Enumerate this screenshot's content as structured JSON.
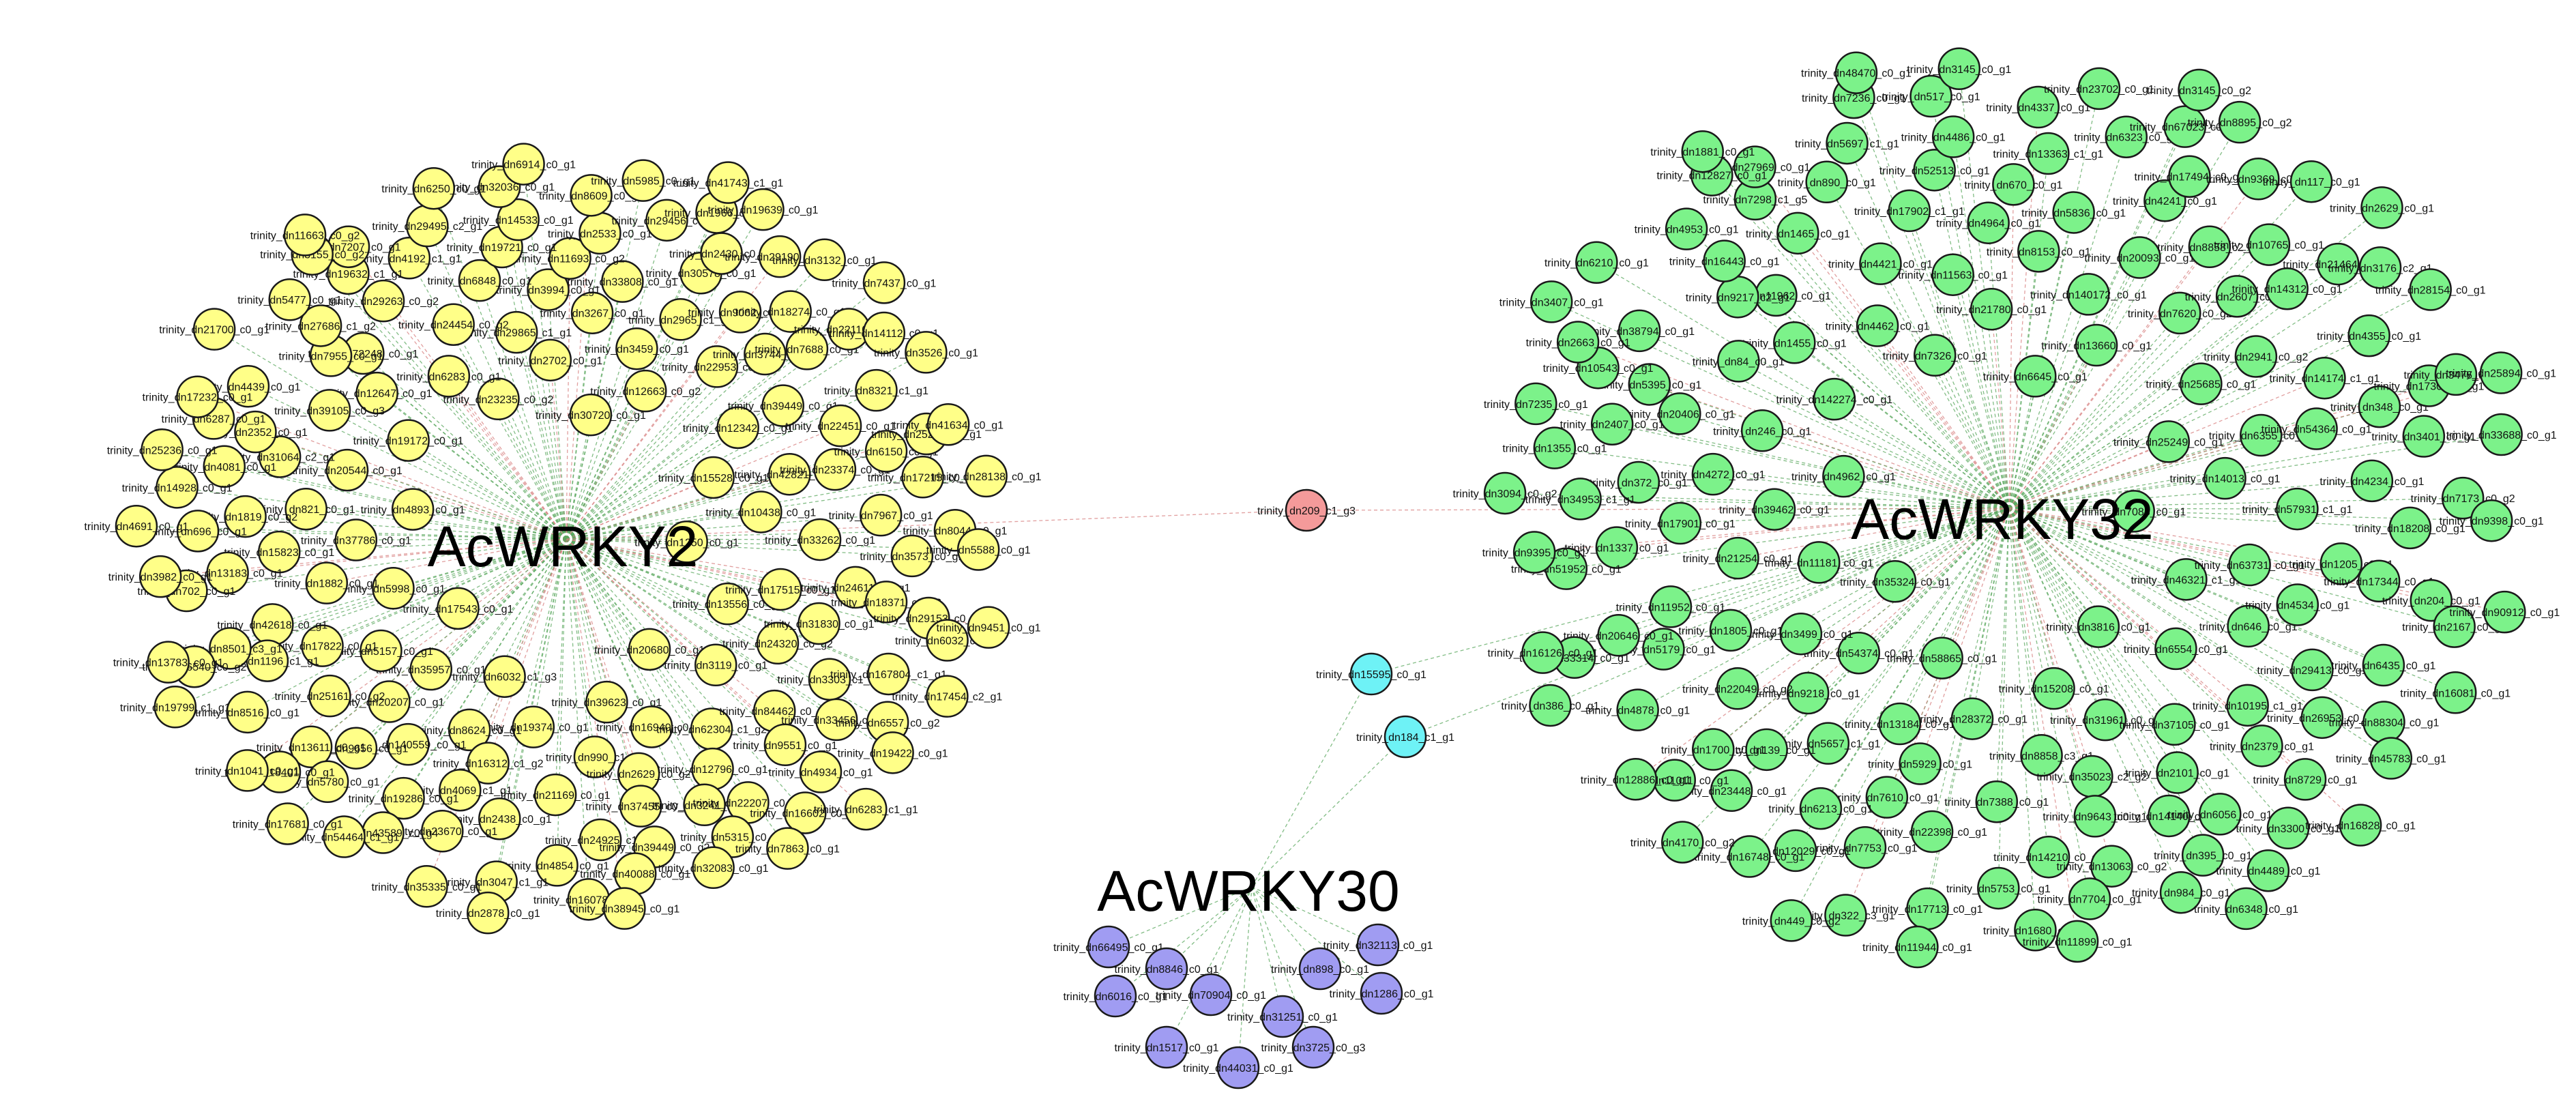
{
  "title": "",
  "colors": {
    "yellow": "#ffff88",
    "green": "#7cf28a",
    "purple": "#a09cf2",
    "cyan": "#6ef2f6",
    "red": "#f49a9a",
    "edge_green": "#5aa85e",
    "edge_red": "#d88080",
    "node_stroke": "#1a1a1a"
  },
  "hubs": [
    {
      "id": "acwrky2",
      "label": "AcWRKY2"
    },
    {
      "id": "acwrky32",
      "label": "AcWRKY32"
    },
    {
      "id": "acwrky30",
      "label": "AcWRKY30"
    }
  ],
  "shared_nodes": [
    {
      "label": "trinity_dn209_c1_g3",
      "color": "red",
      "links": [
        "acwrky2",
        "acwrky32"
      ]
    },
    {
      "label": "trinity_dn15595_c0_g1",
      "color": "cyan",
      "links": [
        "acwrky32",
        "acwrky30"
      ]
    },
    {
      "label": "trinity_dn184_c1_g1",
      "color": "cyan",
      "links": [
        "acwrky32",
        "acwrky30"
      ]
    }
  ],
  "clusters": {
    "acwrky2": {
      "color": "yellow",
      "nodes": [
        "trinity_dn1250_c0_g1",
        "trinity_dn17543_c0_g1",
        "trinity_dn30720_c0_g1",
        "trinity_dn20680_c0_g1",
        "trinity_dn4893_c0_g1",
        "trinity_dn15528_c0_g1",
        "trinity_dn6032_c1_g3",
        "trinity_dn23235_c0_g2",
        "trinity_dn13556_c0_g1",
        "trinity_dn5998_c0_g1",
        "trinity_dn12663_c0_g2",
        "trinity_dn39623_c0_g1",
        "trinity_dn19172_c0_g1",
        "trinity_dn10438_c0_g1",
        "trinity_dn35957_c0_g1",
        "trinity_dn2702_c0_g1",
        "trinity_dn3119_c0_g1",
        "trinity_dn37786_c0_g1",
        "trinity_dn12342_c0_g1",
        "trinity_dn19374_c0_g1",
        "trinity_dn6283_c0_g1",
        "trinity_dn17515_c0_g1",
        "trinity_dn5157_c0_g1",
        "trinity_dn3459_c0_g1",
        "trinity_dn16940_c0_g1",
        "trinity_dn20544_c0_g1",
        "trinity_dn42821_c0_g1",
        "trinity_dn8624_c0_g1",
        "trinity_dn29865_c1_g1",
        "trinity_dn24320_c0_g2",
        "trinity_dn1882_c0_g1",
        "trinity_dn22953_c0_g1",
        "trinity_dn990_c1_g1",
        "trinity_dn12647_c0_g1",
        "trinity_dn33262_c0_g1",
        "trinity_dn20207_c0_g1",
        "trinity_dn3267_c0_g1",
        "trinity_dn62304_c1_g2",
        "trinity_dn821_c0_g1",
        "trinity_dn39449_c0_g1",
        "trinity_dn16312_c1_g2",
        "trinity_dn24454_c0_g2",
        "trinity_dn31830_c0_g1",
        "trinity_dn17822_c0_g1",
        "trinity_dn2965_c1_g1",
        "trinity_dn2629_c0_g2",
        "trinity_dn39105_c0_g3",
        "trinity_dn23374_c0_g1",
        "trinity_dn140559_c0_g1",
        "trinity_dn3994_c0_g1",
        "trinity_dn84462_c0_g2",
        "trinity_dn15823_c0_g1",
        "trinity_dn3744_c3_g1",
        "trinity_dn21169_c0_g1",
        "trinity_dn72248_c0_g1",
        "trinity_dn24611_c0_g1",
        "trinity_dn25161_c0_g2",
        "trinity_dn33808_c0_g1",
        "trinity_dn12796_c0_g1",
        "trinity_dn31064_c2_g1",
        "trinity_dn22451_c0_g1",
        "trinity_dn4069_c1_g1",
        "trinity_dn6848_c0_g1",
        "trinity_dn3303_c1_g1",
        "trinity_dn42618_c0_g1",
        "trinity_dn9062_c0_g1",
        "trinity_dn37455_c0_g1",
        "trinity_dn7955_c0_g1",
        "trinity_dn7967_c0_g1",
        "trinity_dn9656_c0_g1",
        "trinity_dn11693_c0_g2",
        "trinity_dn9551_c0_g1",
        "trinity_dn1819_c0_g2",
        "trinity_dn7688_c0_g1",
        "trinity_dn2438_c0_g1",
        "trinity_dn29263_c0_g2",
        "trinity_dn18371_c0_g2",
        "trinity_dn1196_c1_g1",
        "trinity_dn30578_c0_g1",
        "trinity_dn3241_c0_g2",
        "trinity_dn2352_c0_g1",
        "trinity_dn6150_c0_g1",
        "trinity_dn19286_c0_g1",
        "trinity_dn19721_c0_g1",
        "trinity_dn33456_c0_g2",
        "trinity_dn13183_c0_g1",
        "trinity_dn18274_c0_g1",
        "trinity_dn24925_c1_g1",
        "trinity_dn27686_c1_g2",
        "trinity_dn3573_c0_g1",
        "trinity_dn13611_c0_g1",
        "trinity_dn2533_c0_g1",
        "trinity_dn22207_c0_g1",
        "trinity_dn4081_c0_g1",
        "trinity_dn8321_c1_g1",
        "trinity_dn23670_c0_g1",
        "trinity_dn4192_c1_g1",
        "trinity_dn167804_c1_g1",
        "trinity_dn8501_c3_g1",
        "trinity_dn2430_c0_g1",
        "trinity_dn39449_c0_g2",
        "trinity_dn4439_c0_g1",
        "trinity_dn17215_c0_g1",
        "trinity_dn5780_c0_g1",
        "trinity_dn14533_c0_g1",
        "trinity_dn4934_c0_g1",
        "trinity_dn696_c0_g1",
        "trinity_dn22110_c0_g3",
        "trinity_dn4854_c0_g1",
        "trinity_dn19632_c1_g1",
        "trinity_dn29153_c0_g1",
        "trinity_dn8516_c0_g1",
        "trinity_dn29456_c0_g1",
        "trinity_dn5315_c0_g1",
        "trinity_dn6287_c0_g1",
        "trinity_dn25295_c0_g1",
        "trinity_dn43589_c0_g4",
        "trinity_dn29495_c2_g1",
        "trinity_dn6557_c0_g2",
        "trinity_dn702_c0_g1",
        "trinity_dn29190_c0_g1",
        "trinity_dn40088_c0_g1",
        "trinity_dn5477_c0_g1",
        "trinity_dn8044_c0_g1",
        "trinity_dn18401_c0_g1",
        "trinity_dn8609_c0_g1",
        "trinity_dn16602_c0_g2",
        "trinity_dn14928_c0_g1",
        "trinity_dn14112_c0_g1",
        "trinity_dn3047_c1_g1",
        "trinity_dn7207_c0_g1",
        "trinity_dn6032_c1_g5",
        "trinity_dn6540_c0_g2",
        "trinity_dn1966_c0_g3",
        "trinity_dn32083_c0_g1",
        "trinity_dn17232_c0_g1",
        "trinity_dn41634_c0_g1",
        "trinity_dn54464_c1_g1",
        "trinity_dn32036_c0_g1",
        "trinity_dn19422_c0_g1",
        "trinity_dn3982_c0_g1",
        "trinity_dn3132_c0_g1",
        "trinity_dn16078_c0_g1",
        "trinity_dn3155_c0_g2",
        "trinity_dn5588_c0_g1",
        "trinity_dn1041_c0_g1",
        "trinity_dn5985_c0_g1",
        "trinity_dn7863_c0_g1",
        "trinity_dn25236_c0_g1",
        "trinity_dn3526_c0_g1",
        "trinity_dn35335_c0_g1",
        "trinity_dn6250_c0_g1",
        "trinity_dn17454_c2_g1",
        "trinity_dn13783_c0_g1",
        "trinity_dn19639_c0_g1",
        "trinity_dn38945_c0_g1",
        "trinity_dn21700_c0_g1",
        "trinity_dn28138_c0_g1",
        "trinity_dn17681_c0_g1",
        "trinity_dn6914_c0_g1",
        "trinity_dn6283_c1_g1",
        "trinity_dn4691_c0_g1",
        "trinity_dn7437_c0_g1",
        "trinity_dn2878_c0_g1",
        "trinity_dn11663_c0_g2",
        "trinity_dn9451_c0_g1",
        "trinity_dn19799_c1_g1",
        "trinity_dn41743_c1_g1"
      ]
    },
    "acwrky32": {
      "color": "green",
      "nodes": [
        "trinity_dn7088_c0_g1",
        "trinity_dn35324_c0_g1",
        "trinity_dn6645_c0_g1",
        "trinity_dn3816_c0_g1",
        "trinity_dn4962_c0_g1",
        "trinity_dn25249_c0_g1",
        "trinity_dn58865_c0_g1",
        "trinity_dn7326_c0_g1",
        "trinity_dn46321_c1_g1",
        "trinity_dn11181_c0_g1",
        "trinity_dn13660_c0_g1",
        "trinity_dn15208_c0_g1",
        "trinity_dn142274_c0_g1",
        "trinity_dn14013_c0_g1",
        "trinity_dn54374_c0_g1",
        "trinity_dn21780_c0_g1",
        "trinity_dn6554_c0_g1",
        "trinity_dn39462_c0_g1",
        "trinity_dn25685_c0_g1",
        "trinity_dn28372_c0_g1",
        "trinity_dn4462_c0_g1",
        "trinity_dn63731_c0_g1",
        "trinity_dn3499_c0_g1",
        "trinity_dn140172_c0_g1",
        "trinity_dn31961_c0_g1",
        "trinity_dn246_c0_g1",
        "trinity_dn6355_c0_g1",
        "trinity_dn13184_c0_g1",
        "trinity_dn11563_c0_g1",
        "trinity_dn646_c0_g1",
        "trinity_dn21254_c0_g1",
        "trinity_dn7620_c0_g2",
        "trinity_dn8858_c3_g1",
        "trinity_dn1455_c0_g1",
        "trinity_dn57931_c1_g1",
        "trinity_dn9218_c0_g1",
        "trinity_dn8153_c0_g1",
        "trinity_dn37105_c0_g1",
        "trinity_dn4272_c0_g1",
        "trinity_dn2941_c0_g2",
        "trinity_dn5929_c0_g1",
        "trinity_dn4421_c0_g1",
        "trinity_dn4534_c0_g1",
        "trinity_dn1805_c0_g1",
        "trinity_dn20093_c0_g1",
        "trinity_dn35023_c2_g2",
        "trinity_dn84_c0_g1",
        "trinity_dn54364_c0_g1",
        "trinity_dn5657_c1_g1",
        "trinity_dn4964_c0_g1",
        "trinity_dn10195_c1_g1",
        "trinity_dn17901_c0_g1",
        "trinity_dn2607_c0_g1",
        "trinity_dn7388_c0_g1",
        "trinity_dn11962_c0_g1",
        "trinity_dn1205_c0_g1",
        "trinity_dn22049_c0_g2",
        "trinity_dn5836_c0_g1",
        "trinity_dn2101_c0_g1",
        "trinity_dn20406_c0_g1",
        "trinity_dn14174_c1_g1",
        "trinity_dn7610_c0_g1",
        "trinity_dn17902_c1_g1",
        "trinity_dn29413_c0_g1",
        "trinity_dn11952_c0_g1",
        "trinity_dn8858_c2_g1",
        "trinity_dn9643_c0_g1",
        "trinity_dn9217_c2_g1",
        "trinity_dn4234_c0_g1",
        "trinity_dn139_c0_g1",
        "trinity_dn670_c0_g1",
        "trinity_dn2379_c0_g1",
        "trinity_dn372_c0_g1",
        "trinity_dn14312_c0_g1",
        "trinity_dn22398_c0_g1",
        "trinity_dn1465_c0_g1",
        "trinity_dn17344_c0_g1",
        "trinity_dn5179_c0_g1",
        "trinity_dn4241_c0_g1",
        "trinity_dn14140_c0_g1",
        "trinity_dn5395_c0_g1",
        "trinity_dn348_c0_g1",
        "trinity_dn6213_c0_g1",
        "trinity_dn52513_c0_g1",
        "trinity_dn26953_c0_g1",
        "trinity_dn1337_c0_g1",
        "trinity_dn10765_c0_g1",
        "trinity_dn14210_c0_g1",
        "trinity_dn16443_c0_g1",
        "trinity_dn18208_c0_g1",
        "trinity_dn1700_c0_g1",
        "trinity_dn13363_c1_g1",
        "trinity_dn6056_c0_g1",
        "trinity_dn2407_c0_g1",
        "trinity_dn4355_c0_g1",
        "trinity_dn7753_c0_g1",
        "trinity_dn890_c0_g1",
        "trinity_dn6435_c0_g1",
        "trinity_dn20646_c0_g1",
        "trinity_dn17494_c0_g1",
        "trinity_dn13063_c0_g2",
        "trinity_dn38794_c0_g1",
        "trinity_dn3401_c0_g1",
        "trinity_dn23448_c0_g1",
        "trinity_dn4486_c0_g1",
        "trinity_dn8729_c0_g1",
        "trinity_dn34953_c1_g1",
        "trinity_dn21464_c0_g1",
        "trinity_dn5753_c0_g1",
        "trinity_dn7298_c1_g5",
        "trinity_dn204_c0_g1",
        "trinity_dn4878_c0_g1",
        "trinity_dn6323_c0_g1",
        "trinity_dn395_c0_g1",
        "trinity_dn10543_c0_g1",
        "trinity_dn17305_c0_g1",
        "trinity_dn12029_c0_g1",
        "trinity_dn5697_c1_g1",
        "trinity_dn88304_c0_g1",
        "trinity_dn51952_c0_g1",
        "trinity_dn9369_c0_g1",
        "trinity_dn7704_c0_g1",
        "trinity_dn4953_c0_g1",
        "trinity_dn7173_c0_g2",
        "trinity_dn11011_c0_g1",
        "trinity_dn4337_c0_g1",
        "trinity_dn3300_c0_g1",
        "trinity_dn1355_c0_g1",
        "trinity_dn3176_c2_g1",
        "trinity_dn17713_c0_g1",
        "trinity_dn27969_c0_g1",
        "trinity_dn2167_c0_g1",
        "trinity_dn33314_c0_g1",
        "trinity_dn67023_c0_g1",
        "trinity_dn984_c0_g1",
        "trinity_dn2663_c0_g1",
        "trinity_dn3476_c0_g1",
        "trinity_dn16748_c0_g1",
        "trinity_dn517_c0_g1",
        "trinity_dn45783_c0_g1",
        "trinity_dn9395_c0_g1",
        "trinity_dn117_c0_g1",
        "trinity_dn1680_c0_g1",
        "trinity_dn12827_c0_g1",
        "trinity_dn9398_c0_g1",
        "trinity_dn12886_c0_g1",
        "trinity_dn23702_c0_g1",
        "trinity_dn4489_c0_g1",
        "trinity_dn7235_c0_g1",
        "trinity_dn28154_c0_g1",
        "trinity_dn322_c3_g1",
        "trinity_dn7236_c0_g1",
        "trinity_dn16081_c0_g1",
        "trinity_dn16126_c0_g1",
        "trinity_dn8895_c0_g2",
        "trinity_dn11899_c0_g1",
        "trinity_dn6210_c0_g1",
        "trinity_dn33688_c0_g1",
        "trinity_dn4170_c0_g2",
        "trinity_dn3145_c0_g1",
        "trinity_dn16828_c0_g1",
        "trinity_dn3094_c0_g2",
        "trinity_dn2629_c0_g1",
        "trinity_dn11944_c0_g1",
        "trinity_dn1881_c0_g1",
        "trinity_dn90912_c0_g1",
        "trinity_dn386_c0_g1",
        "trinity_dn3145_c0_g2",
        "trinity_dn6348_c0_g1",
        "trinity_dn3407_c0_g1",
        "trinity_dn25894_c0_g1",
        "trinity_dn449_c0_g2",
        "trinity_dn48470_c0_g1"
      ]
    },
    "acwrky30": {
      "color": "purple",
      "nodes": [
        "trinity_dn66495_c0_g1",
        "trinity_dn8846_c0_g1",
        "trinity_dn32113_c0_g1",
        "trinity_dn898_c0_g1",
        "trinity_dn6016_c0_g1",
        "trinity_dn70904_c0_g1",
        "trinity_dn1286_c0_g1",
        "trinity_dn31251_c0_g1",
        "trinity_dn1517_c0_g1",
        "trinity_dn44031_c0_g1",
        "trinity_dn3725_c0_g3"
      ]
    }
  }
}
